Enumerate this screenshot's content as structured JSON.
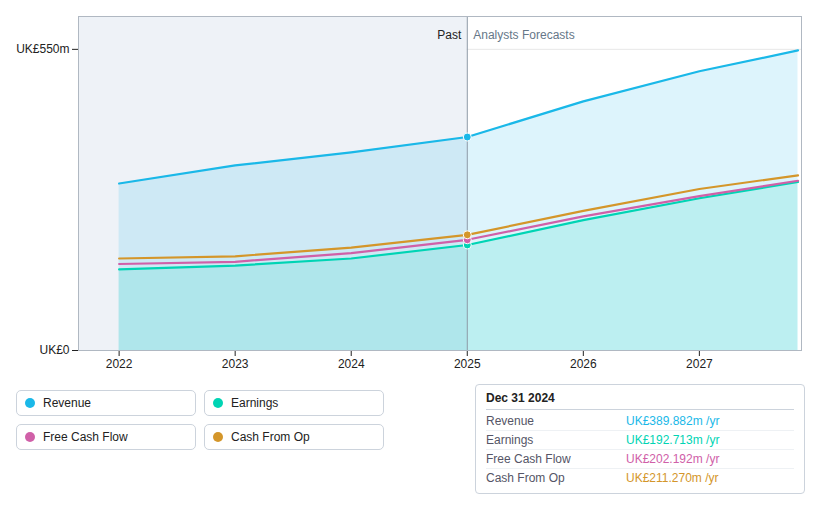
{
  "chart_data": {
    "type": "line",
    "x": [
      2022,
      2023,
      2024,
      2025,
      2026,
      2027,
      2027.85
    ],
    "series": [
      {
        "name": "Revenue",
        "color": "#1ab8e8",
        "type": "area",
        "values": [
          305,
          338,
          362,
          389.882,
          455,
          510,
          548
        ]
      },
      {
        "name": "Earnings",
        "color": "#00d4b4",
        "type": "area",
        "values": [
          148,
          155,
          168,
          192.713,
          238,
          278,
          308
        ]
      },
      {
        "name": "Free Cash Flow",
        "color": "#d060a8",
        "type": "line",
        "values": [
          158,
          162,
          178,
          202.192,
          245,
          282,
          310
        ]
      },
      {
        "name": "Cash From Op",
        "color": "#d4962a",
        "type": "line",
        "values": [
          168,
          172,
          188,
          211.27,
          255,
          295,
          320
        ]
      }
    ],
    "xlim": [
      2021.65,
      2027.88
    ],
    "xticks": [
      2022,
      2023,
      2024,
      2025,
      2026,
      2027
    ],
    "ylim": [
      0,
      610
    ],
    "yticks": [
      {
        "value": 0,
        "label": "UK£0"
      },
      {
        "value": 550,
        "label": "UK£550m"
      }
    ],
    "grid": true,
    "legend": "bottom",
    "annotations": [
      {
        "text": "Past",
        "x": 2025
      },
      {
        "text": "Analysts Forecasts",
        "x": 2025
      },
      {
        "title": "Dec 31 2024",
        "x": 2025,
        "rows": [
          {
            "name": "Revenue",
            "value": 389.882,
            "label": "UK£389.882m /yr",
            "color": "#1ab8e8"
          },
          {
            "name": "Earnings",
            "value": 192.713,
            "label": "UK£192.713m /yr",
            "color": "#00d4b4"
          },
          {
            "name": "Free Cash Flow",
            "value": 202.192,
            "label": "UK£202.192m /yr",
            "color": "#d060a8"
          },
          {
            "name": "Cash From Op",
            "value": 211.27,
            "label": "UK£211.270m /yr",
            "color": "#d4962a"
          }
        ]
      }
    ]
  }
}
